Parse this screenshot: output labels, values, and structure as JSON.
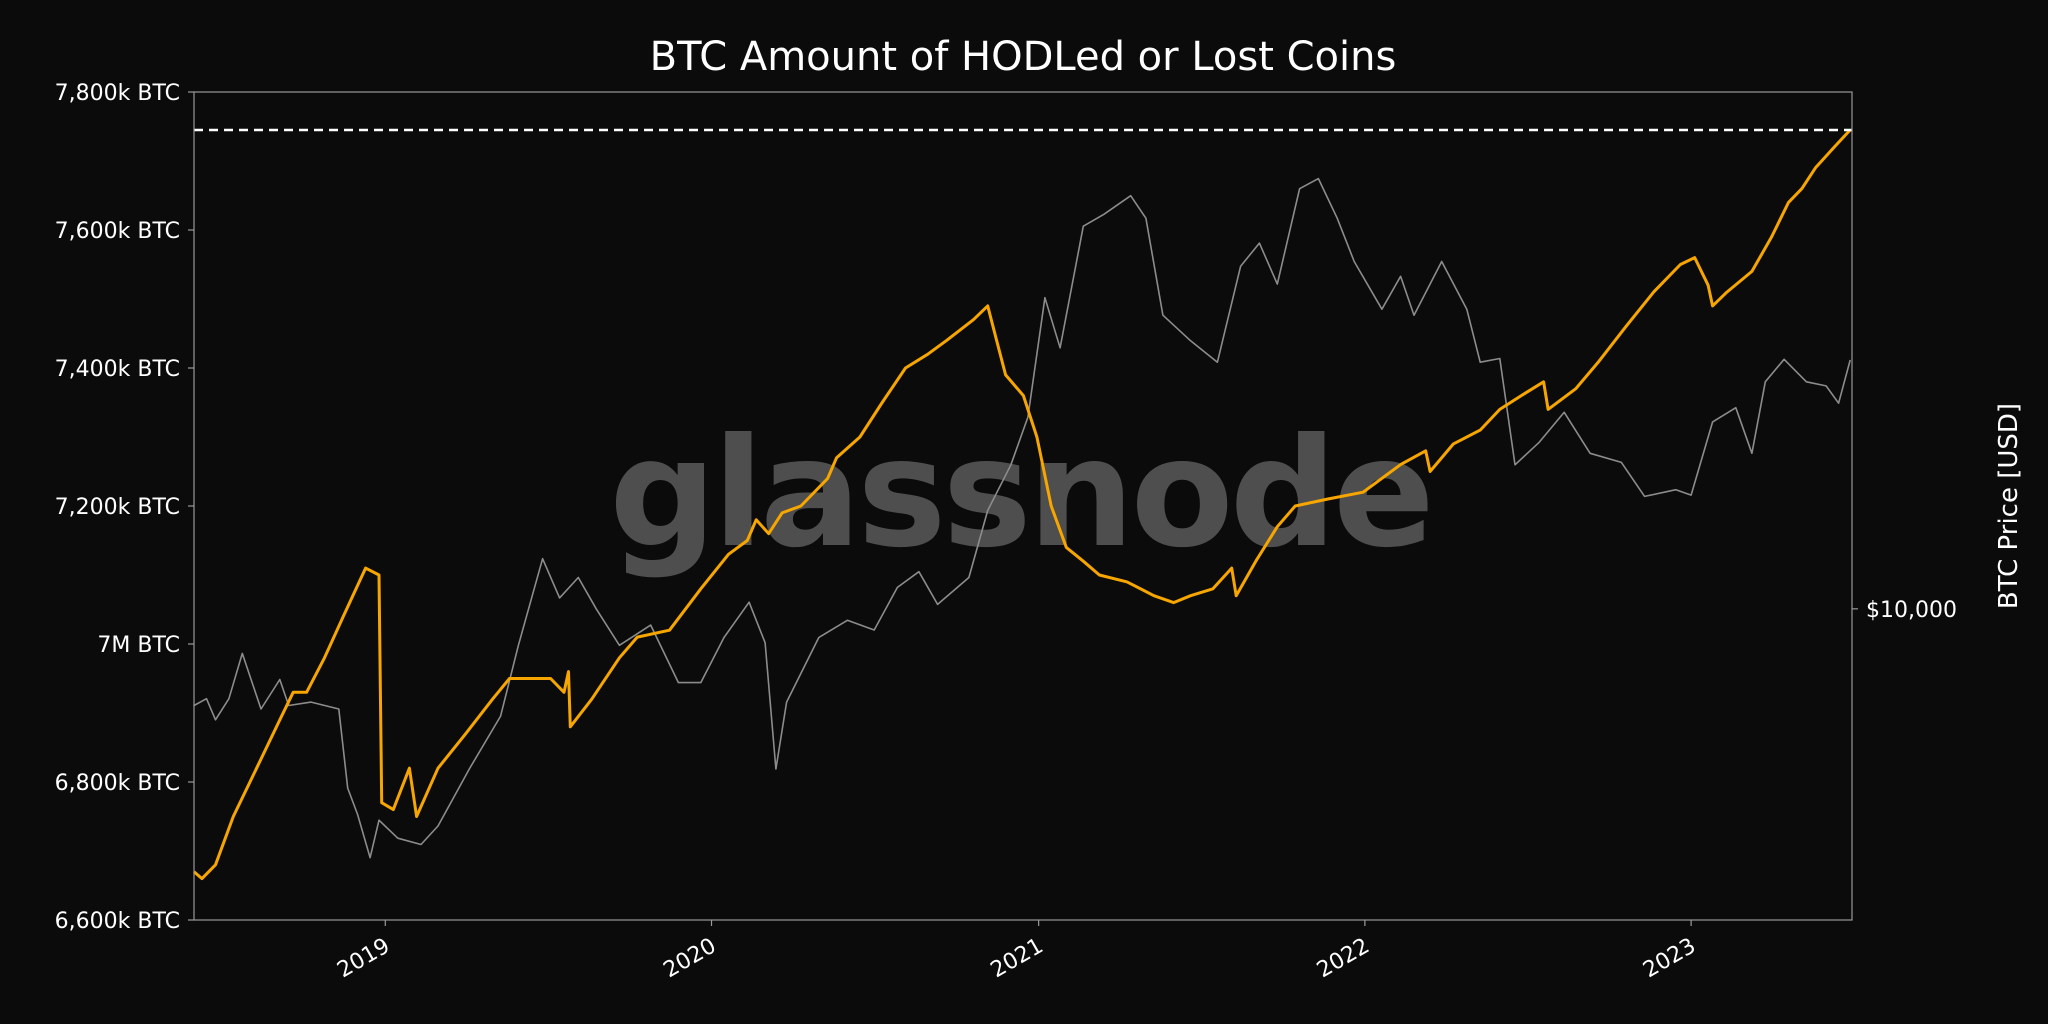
{
  "watermark": "glassnode",
  "chart_data": {
    "type": "line",
    "title": "BTC Amount of HODLed or Lost Coins",
    "xlabel": "",
    "ylabel": "",
    "ylabel_right": "BTC Price [USD]",
    "xlim": [
      "2018-06-01",
      "2023-06-30"
    ],
    "ylim": [
      6600,
      7800
    ],
    "yticks": [
      {
        "value": 6600,
        "label": "6,600k BTC"
      },
      {
        "value": 6800,
        "label": "6,800k BTC"
      },
      {
        "value": 7000,
        "label": "7M BTC"
      },
      {
        "value": 7200,
        "label": "7,200k BTC"
      },
      {
        "value": 7400,
        "label": "7,400k BTC"
      },
      {
        "value": 7600,
        "label": "7,600k BTC"
      },
      {
        "value": 7800,
        "label": "7,800k BTC"
      }
    ],
    "xticks": [
      {
        "value": "2019-01-01",
        "label": "2019"
      },
      {
        "value": "2020-01-01",
        "label": "2020"
      },
      {
        "value": "2021-01-01",
        "label": "2021"
      },
      {
        "value": "2022-01-01",
        "label": "2022"
      },
      {
        "value": "2023-01-01",
        "label": "2023"
      }
    ],
    "y2_scale": "log",
    "y2lim": [
      2500,
      100000
    ],
    "y2ticks": [
      {
        "value": 10000,
        "label": "$10,000"
      }
    ],
    "grid": false,
    "reference_line": {
      "value": 7745,
      "style": "dashed",
      "color": "#ffffff"
    },
    "colors": {
      "hodl": "#f7a600",
      "price": "#8c8c8c",
      "background": "#0b0b0b",
      "axes": "#9a9a9a"
    },
    "series": [
      {
        "axis": "left",
        "values": [
          [
            "2018-06-01",
            6670
          ],
          [
            "2018-06-10",
            6660
          ],
          [
            "2018-06-25",
            6680
          ],
          [
            "2018-07-15",
            6750
          ],
          [
            "2018-08-10",
            6820
          ],
          [
            "2018-09-05",
            6890
          ],
          [
            "2018-09-20",
            6930
          ],
          [
            "2018-10-05",
            6930
          ],
          [
            "2018-10-25",
            6980
          ],
          [
            "2018-11-15",
            7040
          ],
          [
            "2018-12-10",
            7110
          ],
          [
            "2018-12-25",
            7100
          ],
          [
            "2018-12-28",
            6770
          ],
          [
            "2019-01-10",
            6760
          ],
          [
            "2019-01-28",
            6820
          ],
          [
            "2019-02-05",
            6750
          ],
          [
            "2019-03-01",
            6820
          ],
          [
            "2019-04-01",
            6870
          ],
          [
            "2019-05-01",
            6920
          ],
          [
            "2019-05-20",
            6950
          ],
          [
            "2019-06-20",
            6950
          ],
          [
            "2019-07-05",
            6950
          ],
          [
            "2019-07-20",
            6930
          ],
          [
            "2019-07-25",
            6960
          ],
          [
            "2019-07-27",
            6880
          ],
          [
            "2019-08-20",
            6920
          ],
          [
            "2019-09-20",
            6980
          ],
          [
            "2019-10-10",
            7010
          ],
          [
            "2019-11-15",
            7020
          ],
          [
            "2019-12-20",
            7080
          ],
          [
            "2020-01-20",
            7130
          ],
          [
            "2020-02-10",
            7150
          ],
          [
            "2020-02-20",
            7180
          ],
          [
            "2020-03-05",
            7160
          ],
          [
            "2020-03-20",
            7190
          ],
          [
            "2020-04-10",
            7200
          ],
          [
            "2020-05-10",
            7240
          ],
          [
            "2020-05-20",
            7270
          ],
          [
            "2020-06-15",
            7300
          ],
          [
            "2020-07-10",
            7350
          ],
          [
            "2020-08-05",
            7400
          ],
          [
            "2020-08-30",
            7420
          ],
          [
            "2020-09-20",
            7440
          ],
          [
            "2020-10-20",
            7470
          ],
          [
            "2020-11-05",
            7490
          ],
          [
            "2020-11-15",
            7440
          ],
          [
            "2020-11-25",
            7390
          ],
          [
            "2020-12-15",
            7360
          ],
          [
            "2020-12-30",
            7300
          ],
          [
            "2021-01-15",
            7200
          ],
          [
            "2021-02-01",
            7140
          ],
          [
            "2021-02-20",
            7120
          ],
          [
            "2021-03-10",
            7100
          ],
          [
            "2021-04-10",
            7090
          ],
          [
            "2021-05-10",
            7070
          ],
          [
            "2021-06-01",
            7060
          ],
          [
            "2021-06-20",
            7070
          ],
          [
            "2021-07-15",
            7080
          ],
          [
            "2021-08-05",
            7110
          ],
          [
            "2021-08-10",
            7070
          ],
          [
            "2021-09-01",
            7120
          ],
          [
            "2021-09-25",
            7170
          ],
          [
            "2021-10-15",
            7200
          ],
          [
            "2021-11-20",
            7210
          ],
          [
            "2021-12-30",
            7220
          ],
          [
            "2022-02-10",
            7260
          ],
          [
            "2022-03-10",
            7280
          ],
          [
            "2022-03-15",
            7250
          ],
          [
            "2022-04-10",
            7290
          ],
          [
            "2022-05-10",
            7310
          ],
          [
            "2022-06-01",
            7340
          ],
          [
            "2022-06-25",
            7360
          ],
          [
            "2022-07-20",
            7380
          ],
          [
            "2022-07-25",
            7340
          ],
          [
            "2022-08-25",
            7370
          ],
          [
            "2022-09-20",
            7410
          ],
          [
            "2022-10-20",
            7460
          ],
          [
            "2022-11-20",
            7510
          ],
          [
            "2022-12-20",
            7550
          ],
          [
            "2023-01-05",
            7560
          ],
          [
            "2023-01-20",
            7520
          ],
          [
            "2023-01-25",
            7490
          ],
          [
            "2023-02-10",
            7510
          ],
          [
            "2023-03-10",
            7540
          ],
          [
            "2023-04-01",
            7590
          ],
          [
            "2023-04-20",
            7640
          ],
          [
            "2023-05-05",
            7660
          ],
          [
            "2023-05-20",
            7690
          ],
          [
            "2023-06-10",
            7720
          ],
          [
            "2023-06-28",
            7745
          ]
        ]
      },
      {
        "axis": "right",
        "values": [
          [
            "2018-06-01",
            6500
          ],
          [
            "2018-06-15",
            6700
          ],
          [
            "2018-06-25",
            6100
          ],
          [
            "2018-07-10",
            6700
          ],
          [
            "2018-07-25",
            8200
          ],
          [
            "2018-08-15",
            6400
          ],
          [
            "2018-09-05",
            7300
          ],
          [
            "2018-09-15",
            6500
          ],
          [
            "2018-10-10",
            6600
          ],
          [
            "2018-11-10",
            6400
          ],
          [
            "2018-11-20",
            4500
          ],
          [
            "2018-12-01",
            4000
          ],
          [
            "2018-12-15",
            3300
          ],
          [
            "2018-12-25",
            3900
          ],
          [
            "2019-01-15",
            3600
          ],
          [
            "2019-02-10",
            3500
          ],
          [
            "2019-03-01",
            3800
          ],
          [
            "2019-04-05",
            4900
          ],
          [
            "2019-05-10",
            6200
          ],
          [
            "2019-05-30",
            8500
          ],
          [
            "2019-06-26",
            12500
          ],
          [
            "2019-07-15",
            10500
          ],
          [
            "2019-08-05",
            11500
          ],
          [
            "2019-08-25",
            10000
          ],
          [
            "2019-09-20",
            8500
          ],
          [
            "2019-10-25",
            9300
          ],
          [
            "2019-11-25",
            7200
          ],
          [
            "2019-12-20",
            7200
          ],
          [
            "2020-01-15",
            8800
          ],
          [
            "2020-02-12",
            10300
          ],
          [
            "2020-03-01",
            8600
          ],
          [
            "2020-03-13",
            4900
          ],
          [
            "2020-03-25",
            6600
          ],
          [
            "2020-04-30",
            8800
          ],
          [
            "2020-06-01",
            9500
          ],
          [
            "2020-07-01",
            9100
          ],
          [
            "2020-07-27",
            11000
          ],
          [
            "2020-08-20",
            11800
          ],
          [
            "2020-09-10",
            10200
          ],
          [
            "2020-10-15",
            11500
          ],
          [
            "2020-11-05",
            15500
          ],
          [
            "2020-12-01",
            19000
          ],
          [
            "2020-12-20",
            23500
          ],
          [
            "2021-01-08",
            40000
          ],
          [
            "2021-01-25",
            32000
          ],
          [
            "2021-02-20",
            55000
          ],
          [
            "2021-03-15",
            58000
          ],
          [
            "2021-04-14",
            63000
          ],
          [
            "2021-05-01",
            57000
          ],
          [
            "2021-05-20",
            37000
          ],
          [
            "2021-06-20",
            33000
          ],
          [
            "2021-07-20",
            30000
          ],
          [
            "2021-08-15",
            46000
          ],
          [
            "2021-09-05",
            51000
          ],
          [
            "2021-09-25",
            42500
          ],
          [
            "2021-10-20",
            65000
          ],
          [
            "2021-11-10",
            68000
          ],
          [
            "2021-12-01",
            57000
          ],
          [
            "2021-12-20",
            47000
          ],
          [
            "2022-01-20",
            38000
          ],
          [
            "2022-02-10",
            44000
          ],
          [
            "2022-02-25",
            37000
          ],
          [
            "2022-03-28",
            47000
          ],
          [
            "2022-04-25",
            38000
          ],
          [
            "2022-05-10",
            30000
          ],
          [
            "2022-06-01",
            30500
          ],
          [
            "2022-06-18",
            19000
          ],
          [
            "2022-07-15",
            21000
          ],
          [
            "2022-08-12",
            24000
          ],
          [
            "2022-09-10",
            20000
          ],
          [
            "2022-10-15",
            19200
          ],
          [
            "2022-11-10",
            16500
          ],
          [
            "2022-12-15",
            17000
          ],
          [
            "2023-01-01",
            16600
          ],
          [
            "2023-01-25",
            23000
          ],
          [
            "2023-02-20",
            24500
          ],
          [
            "2023-03-10",
            20000
          ],
          [
            "2023-03-25",
            27500
          ],
          [
            "2023-04-15",
            30400
          ],
          [
            "2023-05-10",
            27500
          ],
          [
            "2023-06-01",
            27000
          ],
          [
            "2023-06-15",
            25000
          ],
          [
            "2023-06-28",
            30300
          ]
        ]
      }
    ]
  }
}
